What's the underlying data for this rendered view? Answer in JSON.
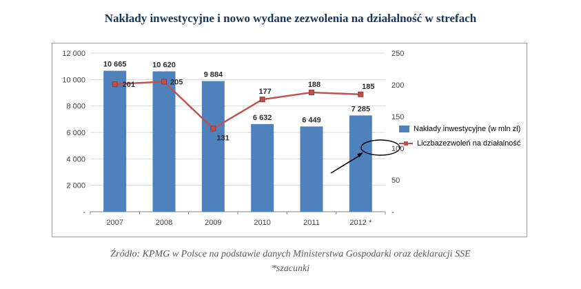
{
  "title": "Nakłady inwestycyjne i nowo wydane zezwolenia na działalność w strefach",
  "source": {
    "line1": "Źródło: KPMG w Polsce na podstawie danych Ministerstwa Gospodarki oraz deklaracji SSE",
    "line2": "*szacunki"
  },
  "chart_data": {
    "type": "bar",
    "subtype": "combo-bar-line",
    "categories": [
      "2007",
      "2008",
      "2009",
      "2010",
      "2011",
      "2012 *"
    ],
    "series": [
      {
        "name": "Nakłady inwestycyjne (w mln zł)",
        "type": "bar",
        "axis": "left",
        "color": "#4F81BD",
        "values": [
          10665,
          10620,
          9884,
          6632,
          6449,
          7285
        ],
        "labels": [
          "10 665",
          "10 620",
          "9 884",
          "6 632",
          "6 449",
          "7 285"
        ]
      },
      {
        "name": "Liczbazezwoleń na działalność",
        "type": "line",
        "axis": "right",
        "color": "#C0504D",
        "marker_stroke": "#943634",
        "values": [
          201,
          205,
          131,
          177,
          188,
          185
        ],
        "labels": [
          "201",
          "205",
          "131",
          "177",
          "188",
          "185"
        ]
      }
    ],
    "left_axis": {
      "min": 0,
      "max": 12000,
      "step": 2000,
      "tick_labels": [
        "-",
        "2 000",
        "4 000",
        "6 000",
        "8 000",
        "10 000",
        "12 000"
      ]
    },
    "right_axis": {
      "min": 0,
      "max": 250,
      "step": 50,
      "tick_labels": [
        "-",
        "50",
        "100",
        "150",
        "200",
        "250"
      ]
    },
    "grid": true,
    "legend_position": "right",
    "annotations": [
      {
        "type": "ellipse",
        "note": "hand-drawn circle highlighting the area near the right-axis 100 level beside the 2012 bar"
      },
      {
        "type": "arrow",
        "note": "arrow pointing at the highlighted circle"
      }
    ],
    "grid_color": "#D8D8D8",
    "axis_color": "#808080"
  }
}
